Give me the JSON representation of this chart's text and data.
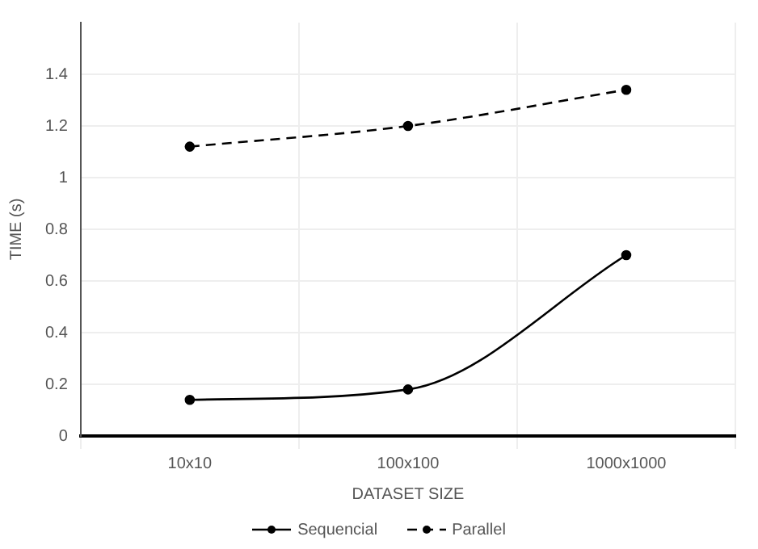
{
  "chart_data": {
    "type": "line",
    "xlabel": "DATASET SIZE",
    "ylabel": "TIME (s)",
    "categories": [
      "10x10",
      "100x100",
      "1000x1000"
    ],
    "series": [
      {
        "name": "Sequencial",
        "color": "#000000",
        "line_style": "solid",
        "values": [
          0.14,
          0.18,
          0.7
        ]
      },
      {
        "name": "Parallel",
        "color": "#000000",
        "line_style": "dashed",
        "values": [
          1.12,
          1.2,
          1.34
        ]
      }
    ],
    "ylim": [
      0,
      1.6
    ],
    "yticks": [
      0,
      0.2,
      0.4,
      0.6,
      0.8,
      1,
      1.2,
      1.4
    ],
    "grid": true,
    "legend": "bottom",
    "marker": "circle"
  }
}
